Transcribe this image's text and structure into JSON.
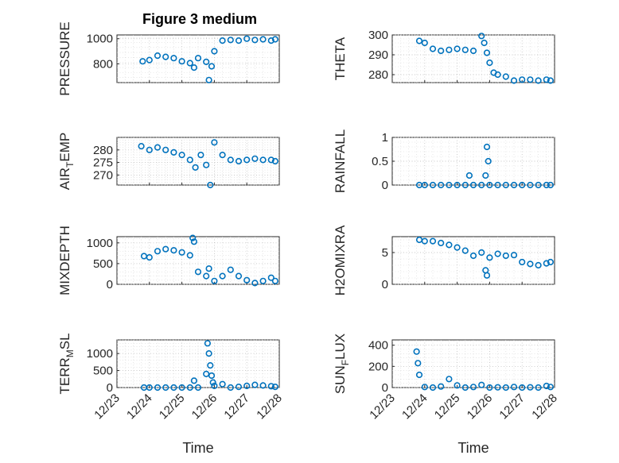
{
  "title": "Figure 3 medium",
  "colors": {
    "marker": "#0072bd",
    "axes": "#262626",
    "grid": "#b8b8b8"
  },
  "chart_data": [
    {
      "type": "scatter",
      "ylabel": "PRESSURE",
      "ylim": [
        650,
        1030
      ],
      "yticks": [
        800,
        1000
      ],
      "ytick_labels": [
        "800",
        "1000"
      ],
      "grid": true,
      "x": [
        "12/23 19:00",
        "12/24 00:00",
        "12/24 06:00",
        "12/24 12:00",
        "12/24 18:00",
        "12/25 00:00",
        "12/25 06:00",
        "12/25 09:00",
        "12/25 12:00",
        "12/25 18:00",
        "12/25 20:00",
        "12/25 22:00",
        "12/26 00:00",
        "12/26 06:00",
        "12/26 12:00",
        "12/26 18:00",
        "12/27 00:00",
        "12/27 06:00",
        "12/27 12:00",
        "12/27 18:00",
        "12/27 21:00"
      ],
      "y": [
        820,
        830,
        865,
        855,
        845,
        820,
        805,
        770,
        845,
        815,
        670,
        780,
        900,
        985,
        990,
        985,
        1000,
        990,
        995,
        985,
        995
      ]
    },
    {
      "type": "scatter",
      "ylabel": "THETA",
      "ylim": [
        276,
        300
      ],
      "yticks": [
        280,
        290,
        300
      ],
      "ytick_labels": [
        "280",
        "290",
        "300"
      ],
      "grid": true,
      "x": [
        "12/23 20:00",
        "12/24 00:00",
        "12/24 06:00",
        "12/24 12:00",
        "12/24 18:00",
        "12/25 00:00",
        "12/25 06:00",
        "12/25 12:00",
        "12/25 18:00",
        "12/25 20:00",
        "12/25 22:00",
        "12/26 00:00",
        "12/26 03:00",
        "12/26 06:00",
        "12/26 12:00",
        "12/26 18:00",
        "12/27 00:00",
        "12/27 06:00",
        "12/27 12:00",
        "12/27 18:00",
        "12/27 21:00"
      ],
      "y": [
        297,
        296,
        293,
        292,
        292.5,
        293,
        292.5,
        292,
        299.5,
        296,
        291,
        286,
        281,
        280,
        279,
        277,
        277.5,
        277.5,
        277,
        277.5,
        277
      ]
    },
    {
      "type": "scatter",
      "ylabel": "AIR_TEMP",
      "ylim": [
        266,
        285
      ],
      "yticks": [
        270,
        275,
        280
      ],
      "ytick_labels": [
        "270",
        "275",
        "280"
      ],
      "grid": true,
      "x": [
        "12/23 18:00",
        "12/24 00:00",
        "12/24 06:00",
        "12/24 12:00",
        "12/24 18:00",
        "12/25 00:00",
        "12/25 06:00",
        "12/25 10:00",
        "12/25 14:00",
        "12/25 18:00",
        "12/25 21:00",
        "12/26 00:00",
        "12/26 06:00",
        "12/26 12:00",
        "12/26 18:00",
        "12/27 00:00",
        "12/27 06:00",
        "12/27 12:00",
        "12/27 18:00",
        "12/27 21:00"
      ],
      "y": [
        281.5,
        280,
        281,
        280,
        279,
        278,
        276,
        273,
        278,
        274,
        266,
        283,
        278,
        276,
        275.5,
        276,
        276.5,
        276,
        276,
        275.5
      ]
    },
    {
      "type": "scatter",
      "ylabel": "RAINFALL",
      "ylim": [
        0,
        1
      ],
      "yticks": [
        0,
        0.5,
        1
      ],
      "ytick_labels": [
        "0",
        "0.5",
        "1"
      ],
      "grid": true,
      "x": [
        "12/23 20:00",
        "12/24 00:00",
        "12/24 06:00",
        "12/24 12:00",
        "12/24 18:00",
        "12/25 00:00",
        "12/25 06:00",
        "12/25 09:00",
        "12/25 12:00",
        "12/25 18:00",
        "12/25 21:00",
        "12/25 22:00",
        "12/25 23:00",
        "12/26 00:00",
        "12/26 06:00",
        "12/26 12:00",
        "12/26 18:00",
        "12/27 00:00",
        "12/27 06:00",
        "12/27 12:00",
        "12/27 18:00",
        "12/27 21:00"
      ],
      "y": [
        0,
        0,
        0,
        0,
        0,
        0,
        0,
        0.2,
        0,
        0,
        0.2,
        0.8,
        0.5,
        0,
        0,
        0,
        0,
        0,
        0,
        0,
        0,
        0
      ]
    },
    {
      "type": "scatter",
      "ylabel": "MIXDEPTH",
      "ylim": [
        0,
        1150
      ],
      "yticks": [
        0,
        500,
        1000
      ],
      "ytick_labels": [
        "0",
        "500",
        "1000"
      ],
      "grid": true,
      "x": [
        "12/23 20:00",
        "12/24 00:00",
        "12/24 06:00",
        "12/24 12:00",
        "12/24 18:00",
        "12/25 00:00",
        "12/25 06:00",
        "12/25 08:00",
        "12/25 09:00",
        "12/25 12:00",
        "12/25 18:00",
        "12/25 20:00",
        "12/26 00:00",
        "12/26 06:00",
        "12/26 12:00",
        "12/26 18:00",
        "12/27 00:00",
        "12/27 06:00",
        "12/27 12:00",
        "12/27 18:00",
        "12/27 21:00"
      ],
      "y": [
        680,
        650,
        800,
        850,
        820,
        770,
        700,
        1120,
        1030,
        300,
        200,
        380,
        80,
        200,
        350,
        200,
        100,
        30,
        80,
        160,
        80
      ]
    },
    {
      "type": "scatter",
      "ylabel": "H2OMIXRA",
      "ylim": [
        0,
        7.5
      ],
      "yticks": [
        0,
        5
      ],
      "ytick_labels": [
        "0",
        "5"
      ],
      "grid": true,
      "x": [
        "12/23 20:00",
        "12/24 00:00",
        "12/24 06:00",
        "12/24 12:00",
        "12/24 18:00",
        "12/25 00:00",
        "12/25 06:00",
        "12/25 12:00",
        "12/25 18:00",
        "12/25 21:00",
        "12/25 22:00",
        "12/26 00:00",
        "12/26 06:00",
        "12/26 12:00",
        "12/26 18:00",
        "12/27 00:00",
        "12/27 06:00",
        "12/27 12:00",
        "12/27 18:00",
        "12/27 21:00"
      ],
      "y": [
        7,
        6.8,
        6.8,
        6.5,
        6.2,
        5.8,
        5.3,
        4.5,
        5,
        2.2,
        1.4,
        4.2,
        4.8,
        4.5,
        4.6,
        3.5,
        3.2,
        3,
        3.3,
        3.5
      ]
    },
    {
      "type": "scatter",
      "ylabel": "TERR_MSL",
      "ylim": [
        0,
        1400
      ],
      "yticks": [
        0,
        500,
        1000
      ],
      "ytick_labels": [
        "0",
        "500",
        "1000"
      ],
      "grid": true,
      "x": [
        "12/23 20:00",
        "12/24 00:00",
        "12/24 06:00",
        "12/24 12:00",
        "12/24 18:00",
        "12/25 00:00",
        "12/25 06:00",
        "12/25 09:00",
        "12/25 12:00",
        "12/25 18:00",
        "12/25 19:00",
        "12/25 20:00",
        "12/25 21:00",
        "12/25 22:00",
        "12/25 23:00",
        "12/26 00:00",
        "12/26 06:00",
        "12/26 12:00",
        "12/26 18:00",
        "12/27 00:00",
        "12/27 06:00",
        "12/27 12:00",
        "12/27 18:00",
        "12/27 21:00"
      ],
      "y": [
        0,
        0,
        0,
        0,
        0,
        0,
        0,
        200,
        0,
        400,
        1300,
        1000,
        650,
        350,
        150,
        50,
        100,
        0,
        20,
        50,
        80,
        60,
        40,
        20
      ]
    },
    {
      "type": "scatter",
      "ylabel": "SUN_FLUX",
      "ylim": [
        0,
        450
      ],
      "yticks": [
        0,
        200,
        400
      ],
      "ytick_labels": [
        "0",
        "200",
        "400"
      ],
      "grid": true,
      "x": [
        "12/23 18:00",
        "12/23 19:00",
        "12/23 20:00",
        "12/24 00:00",
        "12/24 06:00",
        "12/24 12:00",
        "12/24 18:00",
        "12/25 00:00",
        "12/25 06:00",
        "12/25 12:00",
        "12/25 18:00",
        "12/26 00:00",
        "12/26 06:00",
        "12/26 12:00",
        "12/26 18:00",
        "12/27 00:00",
        "12/27 06:00",
        "12/27 12:00",
        "12/27 18:00",
        "12/27 21:00"
      ],
      "y": [
        340,
        230,
        120,
        5,
        0,
        10,
        80,
        20,
        0,
        5,
        25,
        0,
        2,
        0,
        5,
        0,
        2,
        0,
        15,
        5
      ]
    }
  ],
  "xaxis": {
    "tick_labels": [
      "12/23",
      "12/24",
      "12/25",
      "12/26",
      "12/27",
      "12/28"
    ],
    "range": [
      "12/23 00:00",
      "12/28 00:00"
    ],
    "label": "Time"
  }
}
